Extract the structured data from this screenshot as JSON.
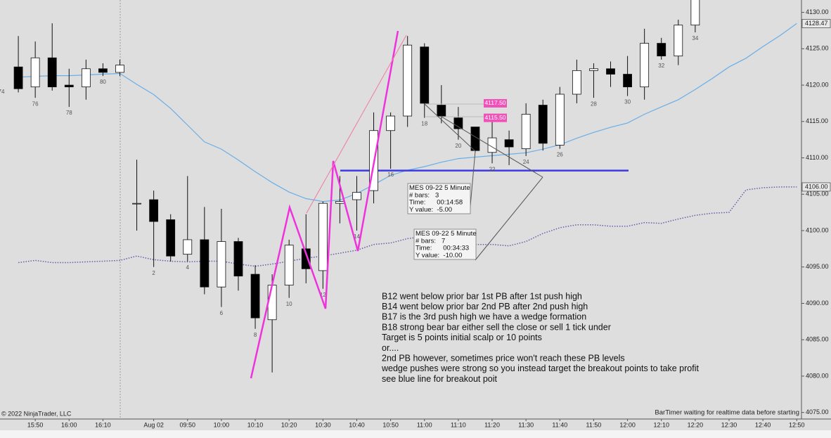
{
  "chart_data": {
    "type": "candlestick",
    "categories": [
      null,
      null,
      "15:50",
      null,
      "16:00",
      null,
      "16:10",
      null,
      null,
      "Aug 02",
      null,
      "09:50",
      null,
      "10:00",
      null,
      "10:10",
      null,
      "10:20",
      null,
      "10:30",
      null,
      "10:40",
      null,
      "10:50",
      null,
      "11:00",
      null,
      "11:10",
      null,
      "11:20",
      null,
      "11:30",
      null,
      "11:40",
      null,
      "11:50",
      null,
      "12:00",
      null,
      "12:10",
      null,
      "12:20",
      null,
      "12:30",
      null,
      "12:40",
      null,
      "12:50"
    ],
    "open": [
      null,
      4122.5,
      4119.75,
      4123.75,
      4120,
      4119.75,
      4122.25,
      4121.75,
      4103.75,
      4104.25,
      4101.5,
      4096.75,
      4098.75,
      4092.25,
      4098.5,
      4094,
      4087.75,
      4092.5,
      4097.5,
      4094.5,
      4103.75,
      4104.25,
      4105.5,
      4113.75,
      4115.75,
      4125.25,
      4117.25,
      4115.5,
      4114.25,
      4110.75,
      4112.5,
      4111.25,
      4117.25,
      4111.75,
      4118.75,
      4122,
      4122.25,
      4121.5,
      4119.75,
      4125.75,
      4124,
      4128.25,
      null,
      null,
      null,
      null,
      null,
      null
    ],
    "high": [
      null,
      4126.75,
      4126,
      4128.5,
      4122.25,
      4123.5,
      4123,
      4123.5,
      4109.75,
      4105.5,
      4102.25,
      4107.5,
      4103.25,
      4103,
      4099,
      4095.25,
      4094,
      4098.75,
      4102.25,
      4104,
      4107.5,
      4107.5,
      4116.25,
      4116.25,
      4126.75,
      4125.75,
      4120,
      4117,
      4114.25,
      4115,
      4113.75,
      4117.5,
      4118,
      4119.75,
      4123.5,
      4123,
      4123.25,
      4124,
      4127.75,
      4126.5,
      4129,
      4133,
      null,
      null,
      null,
      null,
      null,
      null
    ],
    "low": [
      null,
      4119,
      4118.25,
      4119.25,
      4117,
      4118,
      4121.25,
      4121.25,
      4100,
      4095,
      4095.75,
      4095.75,
      4091.25,
      4089.5,
      4091.75,
      4086.5,
      4080.5,
      4090.75,
      4092.75,
      4092,
      4101,
      4100,
      4103.75,
      4108.5,
      4114.25,
      4115.5,
      4114.75,
      4112.5,
      4110.75,
      4109.25,
      4109,
      4110.25,
      4111,
      4111.25,
      4117.5,
      4118.25,
      4119.75,
      4118.5,
      4118,
      4123.5,
      4122.75,
      4127.25,
      null,
      null,
      null,
      null,
      null,
      null
    ],
    "close": [
      null,
      4119.5,
      4123.75,
      4119.75,
      4119.75,
      4122.25,
      4121.75,
      4122.75,
      4103.75,
      4101.25,
      4096.5,
      4098.75,
      4092.25,
      4098.5,
      4093.75,
      4088,
      4092.5,
      4098,
      4094.75,
      4103.75,
      4104,
      4105.25,
      4113.75,
      4115.75,
      4125.5,
      4117.5,
      4115.75,
      4114,
      4111,
      4112.75,
      4111.5,
      4116,
      4112,
      4118.75,
      4122,
      4122.25,
      4121.5,
      4119.75,
      4125.75,
      4124,
      4128.25,
      4132,
      null,
      null,
      null,
      null,
      null,
      null
    ],
    "bar_numbers": [
      74,
      null,
      76,
      null,
      78,
      null,
      80,
      null,
      null,
      2,
      null,
      4,
      null,
      6,
      null,
      8,
      null,
      10,
      null,
      12,
      null,
      14,
      null,
      16,
      null,
      18,
      null,
      20,
      null,
      22,
      null,
      24,
      null,
      26,
      null,
      28,
      null,
      30,
      null,
      32,
      null,
      34,
      null,
      null,
      null,
      null,
      null,
      null
    ],
    "indicators": [
      {
        "color": "#6aaee8",
        "style": "solid",
        "last_label": 4128.47,
        "values": [
          null,
          4121.1,
          4121.2,
          4121.3,
          4121.3,
          4121.4,
          4121.5,
          4121.6,
          4120.1,
          4118.7,
          4116.8,
          4114.5,
          4112.2,
          4111.2,
          4109.7,
          4108.1,
          4106.6,
          4105.3,
          4104.4,
          4104.0,
          4104.2,
          4105.1,
          4106.3,
          4107.6,
          4108.3,
          4108.8,
          4109.4,
          4109.9,
          4110.1,
          4110.3,
          4110.5,
          4110.7,
          4111.2,
          4111.8,
          4112.7,
          4113.5,
          4114.2,
          4114.8,
          4116.0,
          4117.0,
          4118.0,
          4119.4,
          4120.9,
          4122.5,
          4123.7,
          4125.3,
          4126.8,
          4128.47
        ]
      },
      {
        "color": "#6a5aa8",
        "style": "dotted",
        "last_label": {
          "value": 4106,
          "label": "4106.00"
        },
        "values": [
          null,
          4095.6,
          4095.9,
          4095.6,
          4095.6,
          4095.7,
          4095.8,
          4095.9,
          4096.5,
          4096.0,
          4095.8,
          4095.7,
          4095.8,
          4095.8,
          4095.4,
          4095.1,
          4095.4,
          4095.8,
          4096.2,
          4096.5,
          4096.9,
          4097.3,
          4098.1,
          4098.3,
          4098.9,
          4099.2,
          4099.1,
          4098.6,
          4098.1,
          4098.1,
          4097.9,
          4098.5,
          4099.6,
          4100.4,
          4100.8,
          4100.8,
          4100.6,
          4100.6,
          4101.1,
          4101.0,
          4101.6,
          4102.1,
          4102.4,
          4102.5,
          4105.6,
          4105.9,
          4106.0,
          4106
        ]
      }
    ],
    "breakout_line": {
      "value": 4108.25,
      "color": "#3a3ae0"
    },
    "price_labels": [
      {
        "value": 4117.5,
        "label": "4117.50"
      },
      {
        "value": 4115.5,
        "label": "4115.50"
      }
    ],
    "ylim": [
      4074.1,
      4131.7
    ],
    "yticks": [
      {
        "value": 4075,
        "label": "4075.00"
      },
      {
        "value": 4080,
        "label": "4080.00"
      },
      {
        "value": 4085,
        "label": "4085.00"
      },
      {
        "value": 4090,
        "label": "4090.00"
      },
      {
        "value": 4095,
        "label": "4095.00"
      },
      {
        "value": 4100,
        "label": "4100.00"
      },
      {
        "value": 4105,
        "label": "4105.00"
      },
      {
        "value": 4110,
        "label": "4110.00"
      },
      {
        "value": 4115,
        "label": "4115.00"
      },
      {
        "value": 4120,
        "label": "4120.00"
      },
      {
        "value": 4125,
        "label": "4125.00"
      },
      {
        "value": 4130,
        "label": "4130.00"
      }
    ],
    "measurements": [
      {
        "lines": [
          "MES 09-22 5 Minute",
          "# bars:   3",
          "Time:      00:14:58",
          "Y value:  -5.00"
        ]
      },
      {
        "lines": [
          "MES 09-22 5 Minute",
          "# bars:   7",
          "Time:      00:34:33",
          "Y value:  -10.00"
        ]
      }
    ],
    "annotations": [
      "B12 went below prior bar 1st PB after 1st push high",
      "B14 went below prior bar 2nd PB after 2nd push high",
      "B17 is the 3rd push high we have a wedge formation",
      "B18 strong bear bar either sell the close or sell 1 tick under",
      "Target is 5 points initial scalp or 10 points",
      "or....",
      "2nd PB however, sometimes price won't reach these PB levels",
      "wedge pushes were strong so you instead target the breakout points to take profit",
      "see blue line for breakout poit"
    ],
    "copyright": "© 2022 NinjaTrader, LLC",
    "status": "BarTimer waiting for realtime data before starting"
  }
}
